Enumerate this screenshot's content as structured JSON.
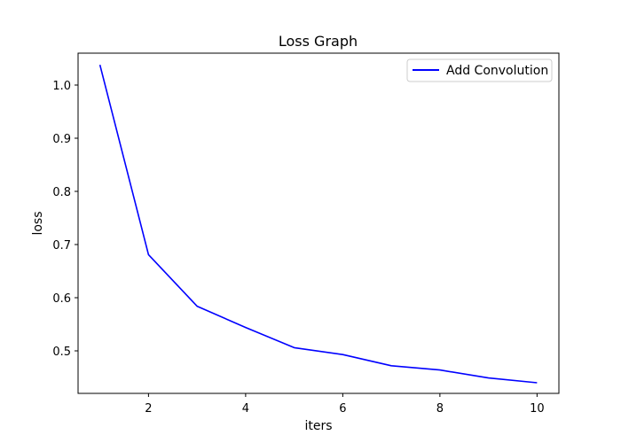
{
  "chart_data": {
    "type": "line",
    "title": "Loss Graph",
    "xlabel": "iters",
    "ylabel": "loss",
    "xlim": [
      0.55,
      10.45
    ],
    "ylim": [
      0.42,
      1.06
    ],
    "x_ticks": [
      2,
      4,
      6,
      8,
      10
    ],
    "x_tick_labels": [
      "2",
      "4",
      "6",
      "8",
      "10"
    ],
    "y_ticks": [
      0.5,
      0.6,
      0.7,
      0.8,
      0.9,
      1.0
    ],
    "y_tick_labels": [
      "0.5",
      "0.6",
      "0.7",
      "0.8",
      "0.9",
      "1.0"
    ],
    "grid": false,
    "legend_position": "top-right",
    "series": [
      {
        "name": "Add Convolution",
        "color": "#0000ff",
        "x": [
          1,
          2,
          3,
          4,
          5,
          6,
          7,
          8,
          9,
          10
        ],
        "y": [
          1.038,
          0.681,
          0.584,
          0.544,
          0.506,
          0.493,
          0.472,
          0.464,
          0.449,
          0.44
        ]
      }
    ]
  }
}
